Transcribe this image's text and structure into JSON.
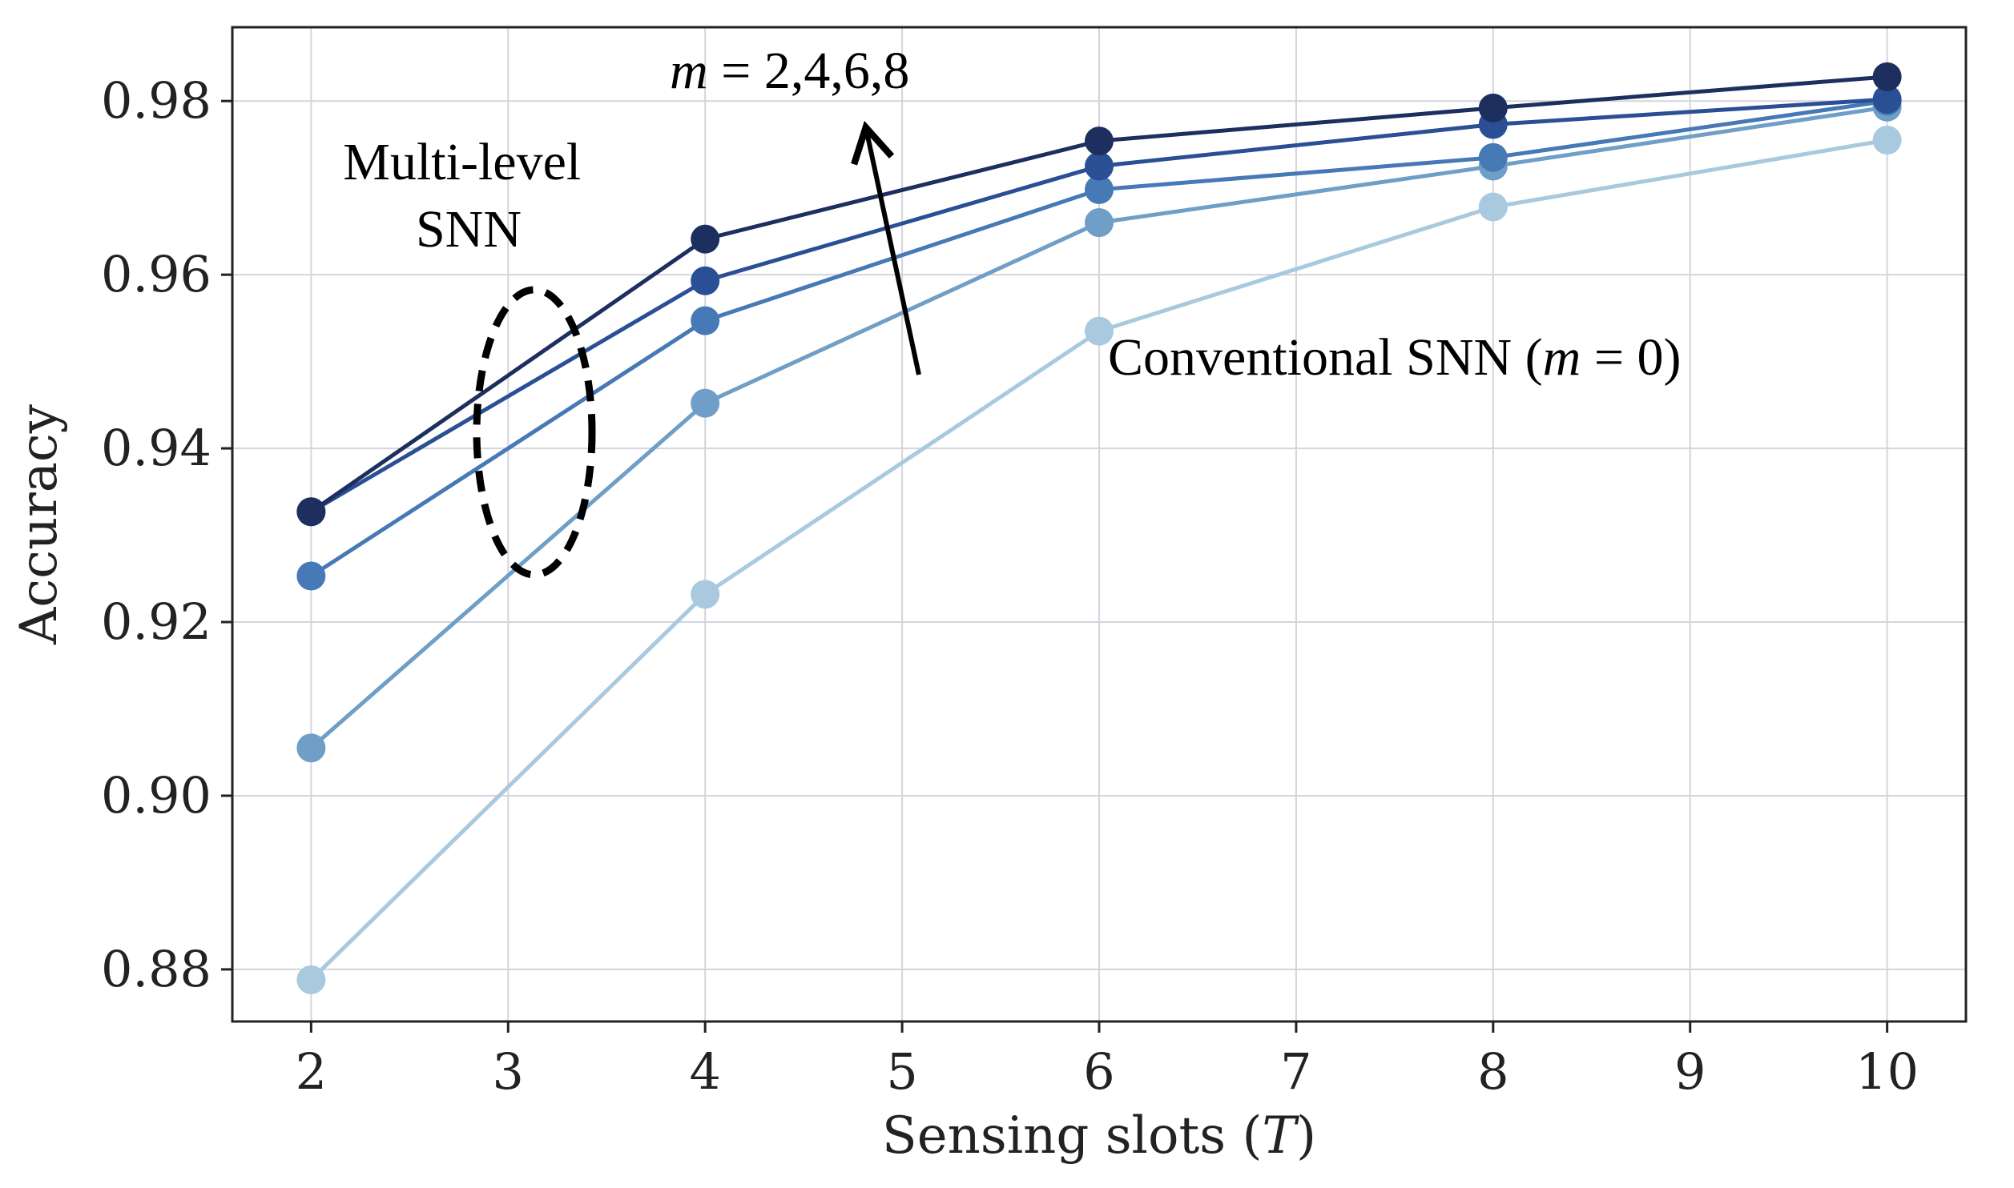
{
  "chart_data": {
    "type": "line",
    "title": "",
    "xlabel": "Sensing slots (",
    "xlabel_var": "T",
    "xlabel_end": ")",
    "ylabel": "Accuracy",
    "xlim": [
      1.6,
      10.4
    ],
    "ylim": [
      0.874,
      0.9885
    ],
    "grid": true,
    "x": [
      2,
      4,
      6,
      8,
      10
    ],
    "x_ticks": [
      "2",
      "3",
      "4",
      "5",
      "6",
      "7",
      "8",
      "9",
      "10"
    ],
    "y_ticks": [
      "0.88",
      "0.90",
      "0.92",
      "0.94",
      "0.96",
      "0.98"
    ],
    "series": [
      {
        "name": "m = 0",
        "color": "#a9c9df",
        "values": [
          0.8788,
          0.9232,
          0.9535,
          0.9678,
          0.9755
        ]
      },
      {
        "name": "m = 2",
        "color": "#6f9ec6",
        "values": [
          0.9055,
          0.9452,
          0.966,
          0.9725,
          0.9793
        ]
      },
      {
        "name": "m = 4",
        "color": "#4679b5",
        "values": [
          0.9253,
          0.9547,
          0.9698,
          0.9735,
          0.98
        ]
      },
      {
        "name": "m = 6",
        "color": "#2a4f95",
        "values": [
          0.9327,
          0.9593,
          0.9725,
          0.9773,
          0.9802
        ]
      },
      {
        "name": "m = 8",
        "color": "#1d2f5e",
        "values": [
          0.9327,
          0.9641,
          0.9754,
          0.9792,
          0.9828
        ]
      }
    ],
    "annotations": {
      "multi_level_line1": "Multi-level",
      "multi_level_line2": "SNN",
      "m_var": "m",
      "m_values": " = 2,4,6,8",
      "conventional_prefix": "Conventional  SNN (",
      "conventional_var": "m",
      "conventional_suffix": " = 0)"
    }
  }
}
